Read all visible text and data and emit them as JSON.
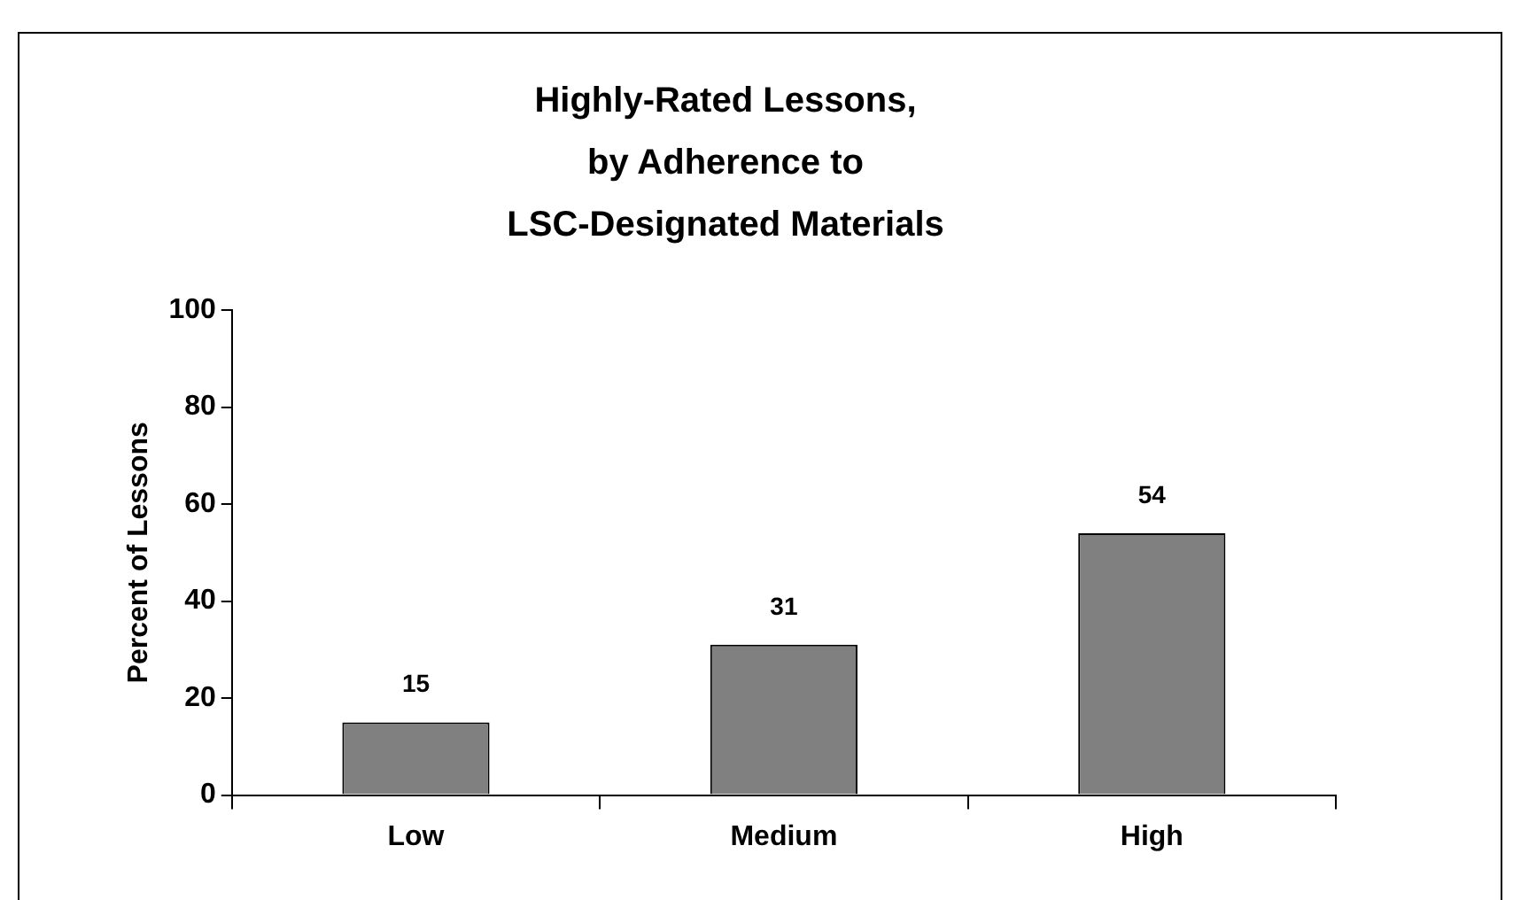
{
  "chart_data": {
    "type": "bar",
    "title": "Highly-Rated Lessons,\nby Adherence to\nLSC-Designated Materials",
    "ylabel": "Percent of Lessons",
    "categories": [
      "Low",
      "Medium",
      "High"
    ],
    "values": [
      15,
      31,
      54
    ],
    "color": "#808080",
    "ylim": [
      0,
      100
    ],
    "yticks": [
      0,
      20,
      40,
      60,
      80,
      100
    ],
    "grid": false,
    "legend": false,
    "data_labels": true
  }
}
